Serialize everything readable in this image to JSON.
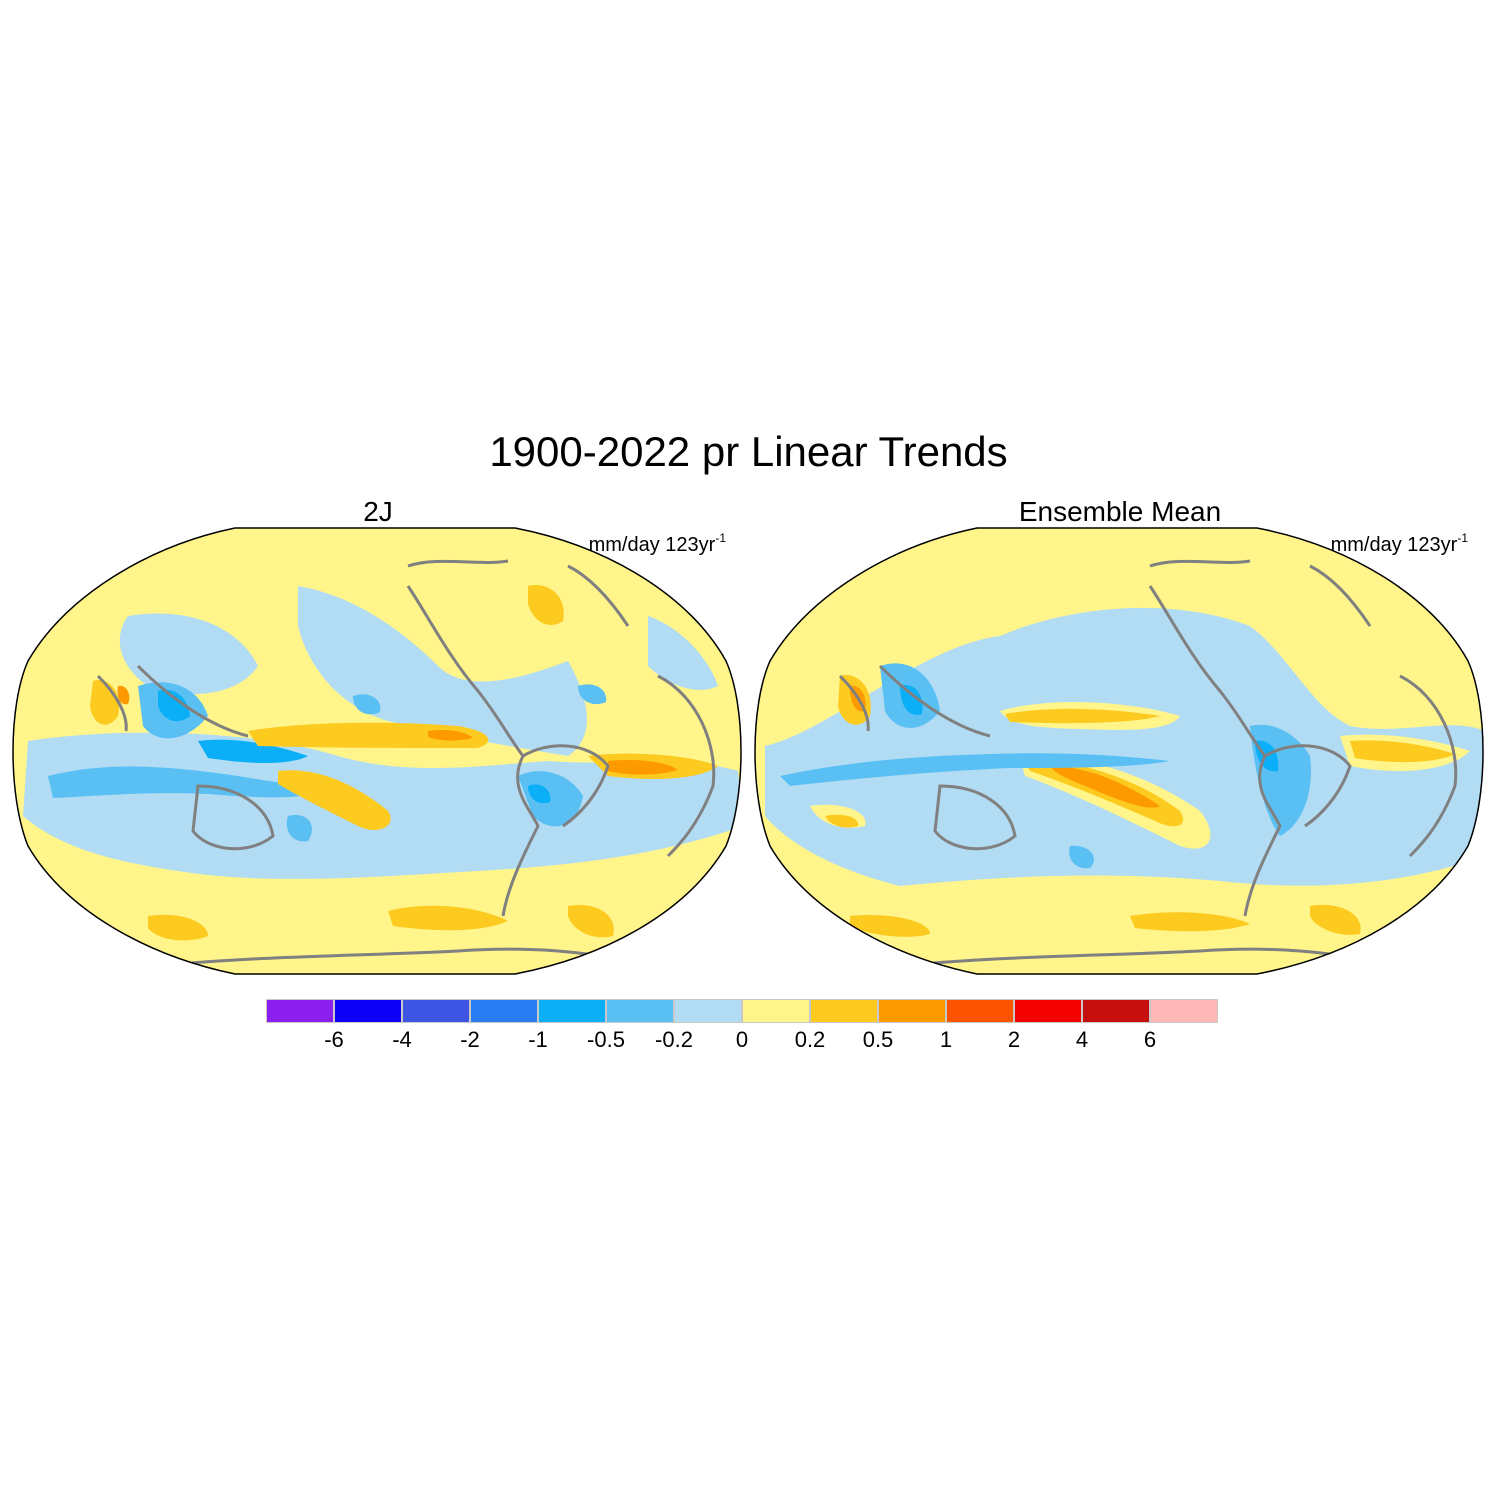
{
  "title": "1900-2022 pr Linear Trends",
  "panels": [
    {
      "title": "2J",
      "units": "mm/day 123yr",
      "units_exponent": "-1"
    },
    {
      "title": "Ensemble Mean",
      "units": "mm/day 123yr",
      "units_exponent": "-1"
    }
  ],
  "colorbar": {
    "labels": [
      "-6",
      "-4",
      "-2",
      "-1",
      "-0.5",
      "-0.2",
      "0",
      "0.2",
      "0.5",
      "1",
      "2",
      "4",
      "6"
    ],
    "colors": [
      "#8a1ff0",
      "#0e00f6",
      "#3e55e4",
      "#2a7cf2",
      "#0aaff8",
      "#5ac0f4",
      "#b2dcf4",
      "#fff58a",
      "#fdca20",
      "#fd9a00",
      "#fe5400",
      "#f30000",
      "#c70e0e",
      "#feb7b7"
    ]
  },
  "map_style": {
    "background_color": "#fff58a",
    "coastline_color": "#808080",
    "projection": "robinson",
    "center_longitude": "150E"
  }
}
